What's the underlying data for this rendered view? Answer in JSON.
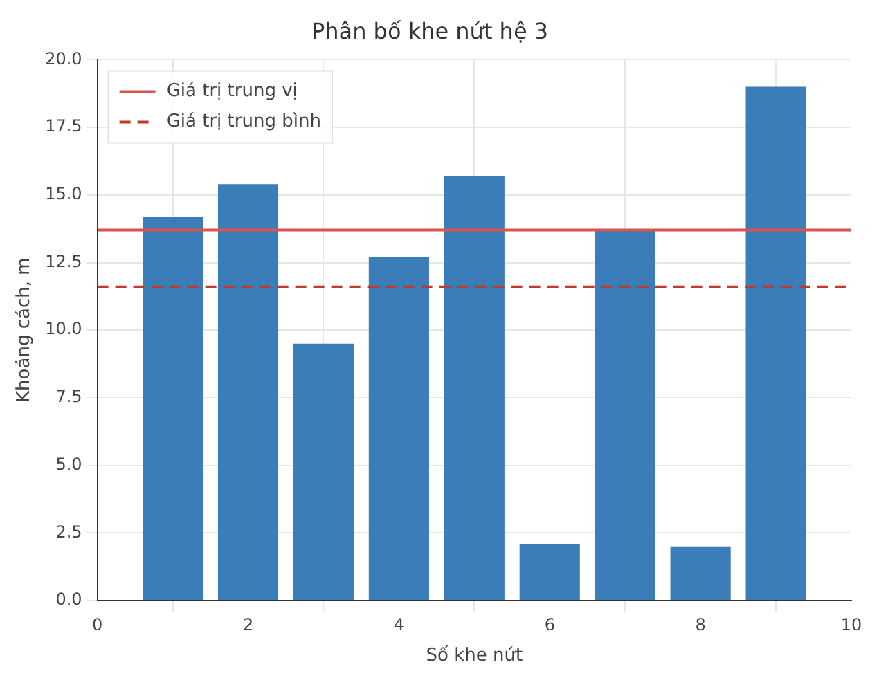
{
  "chart_data": {
    "type": "bar",
    "title": "Phân bố khe nứt hệ 3",
    "xlabel": "Số khe nứt",
    "ylabel": "Khoảng cách, m",
    "x": [
      1,
      2,
      3,
      4,
      5,
      6,
      7,
      8,
      9
    ],
    "values": [
      14.2,
      15.4,
      9.5,
      12.7,
      15.7,
      2.1,
      13.7,
      2.0,
      19.0
    ],
    "color": "#3b7db8",
    "xlim": [
      0,
      10
    ],
    "xticks": [
      0,
      2,
      4,
      6,
      8,
      10
    ],
    "ylim": [
      0,
      20
    ],
    "yticks": [
      {
        "value": 0,
        "label": "0.0"
      },
      2.5,
      {
        "value": 5,
        "label": "5.0"
      },
      7.5,
      {
        "value": 10,
        "label": "10.0"
      },
      12.5,
      {
        "value": 15,
        "label": "15.0"
      },
      17.5,
      {
        "value": 20,
        "label": "20.0"
      }
    ],
    "ref_lines": [
      {
        "axis": "y",
        "value": 13.7,
        "label": "Giá trị trung vị",
        "color": "#d9534f",
        "line_style": "solid"
      },
      {
        "axis": "y",
        "value": 11.6,
        "label": "Giá trị trung bình",
        "color": "#c0392b",
        "line_style": "dashed"
      }
    ],
    "grid": true,
    "legend": "top left"
  }
}
